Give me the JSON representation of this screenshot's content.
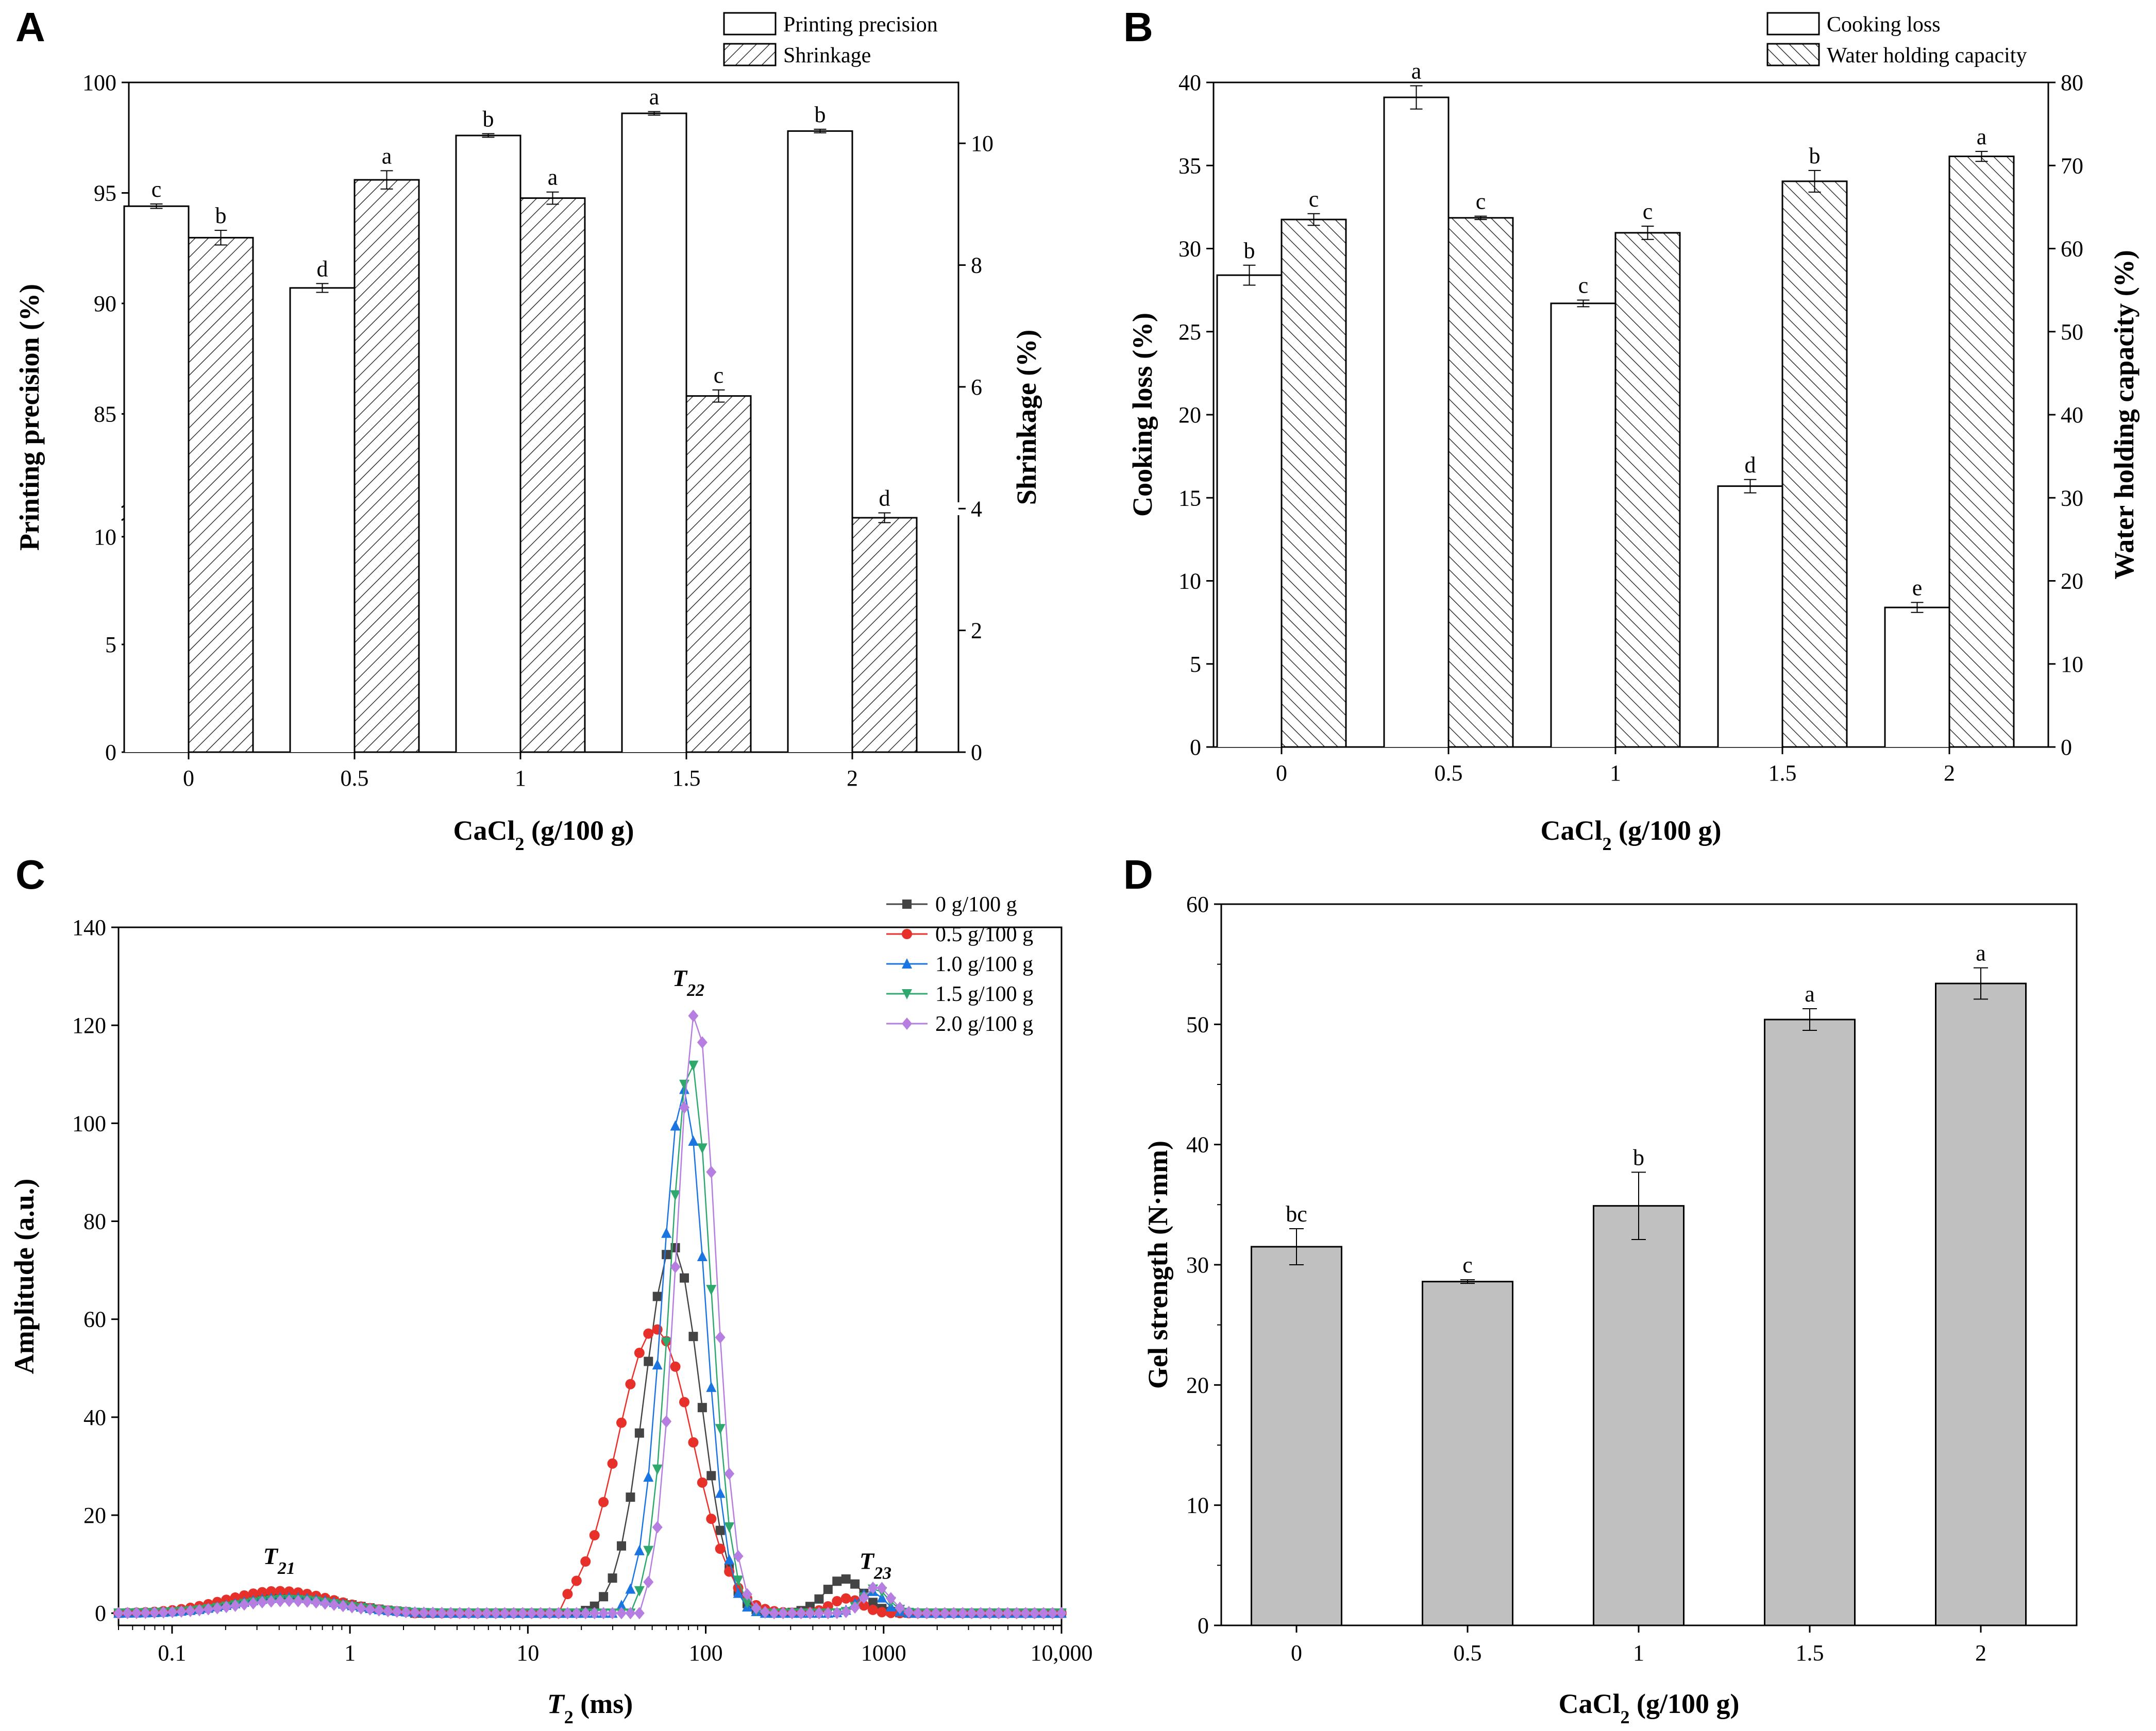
{
  "colors": {
    "bar_fill": "#ffffff",
    "hatch": "#333333",
    "gel_bar": "#c0c0c0",
    "series": [
      "#444444",
      "#e8302a",
      "#1a75e0",
      "#2fa86e",
      "#b57ee0"
    ]
  },
  "chart_data": [
    {
      "panel": "A",
      "type": "bar",
      "categories": [
        "0",
        "0.5",
        "1",
        "1.5",
        "2"
      ],
      "xlabel_main": "CaCl",
      "xlabel_sub": "2",
      "xlabel_rest": " (g/100 g)",
      "ylabel": "Printing precision (%)",
      "ylabel_right": "Shrinkage (%)",
      "left_axis_ticks": [
        "0",
        "5",
        "10",
        "85",
        "90",
        "95",
        "100"
      ],
      "left_axis_break": {
        "lower": [
          0,
          11
        ],
        "upper": [
          81,
          100
        ]
      },
      "right_ylim": [
        0,
        11
      ],
      "right_ticks": [
        "0",
        "2",
        "4",
        "6",
        "8",
        "10"
      ],
      "series": [
        {
          "name": "Printing precision",
          "axis": "left",
          "pattern": "open",
          "values": [
            94.4,
            90.7,
            97.6,
            98.6,
            97.8
          ],
          "errors": [
            0.1,
            0.2,
            0.08,
            0.08,
            0.08
          ],
          "letters": [
            "c",
            "d",
            "b",
            "a",
            "b"
          ]
        },
        {
          "name": "Shrinkage",
          "axis": "right",
          "pattern": "hatched",
          "values": [
            8.45,
            9.4,
            9.1,
            5.85,
            3.85
          ],
          "errors": [
            0.12,
            0.15,
            0.1,
            0.1,
            0.08
          ],
          "letters": [
            "b",
            "a",
            "a",
            "c",
            "d"
          ]
        }
      ]
    },
    {
      "panel": "B",
      "type": "bar",
      "categories": [
        "0",
        "0.5",
        "1",
        "1.5",
        "2"
      ],
      "xlabel_main": "CaCl",
      "xlabel_sub": "2",
      "xlabel_rest": " (g/100 g)",
      "ylabel": "Cooking loss (%)",
      "ylabel_right": "Water holding capacity (%)",
      "ylim": [
        0,
        40
      ],
      "left_ticks": [
        "0",
        "5",
        "10",
        "15",
        "20",
        "25",
        "30",
        "35",
        "40"
      ],
      "right_ylim": [
        0,
        80
      ],
      "right_ticks": [
        "0",
        "10",
        "20",
        "30",
        "40",
        "50",
        "60",
        "70",
        "80"
      ],
      "series": [
        {
          "name": "Cooking loss",
          "axis": "left",
          "pattern": "open",
          "values": [
            28.4,
            39.1,
            26.7,
            15.7,
            8.4
          ],
          "errors": [
            0.6,
            0.7,
            0.2,
            0.4,
            0.3
          ],
          "letters": [
            "b",
            "a",
            "c",
            "d",
            "e"
          ]
        },
        {
          "name": "Water holding capacity",
          "axis": "right",
          "pattern": "hatched",
          "values": [
            63.5,
            63.7,
            61.9,
            68.1,
            71.1
          ],
          "errors": [
            0.7,
            0.2,
            0.8,
            1.3,
            0.6
          ],
          "letters": [
            "c",
            "c",
            "c",
            "b",
            "a"
          ]
        }
      ]
    },
    {
      "panel": "C",
      "type": "line",
      "xscale": "log",
      "xlim": [
        0.05,
        10000
      ],
      "ylim": [
        0,
        140
      ],
      "x_ticks": [
        "0.1",
        "1",
        "10",
        "100",
        "1000",
        "10,000"
      ],
      "y_ticks": [
        "0",
        "20",
        "40",
        "60",
        "80",
        "100",
        "120",
        "140"
      ],
      "xlabel_main": "T",
      "xlabel_sub": "2",
      "xlabel_rest": " (ms)",
      "ylabel": "Amplitude (a.u.)",
      "peak_labels": [
        {
          "main": "T",
          "sub": "21",
          "x": 0.4,
          "y": 10
        },
        {
          "main": "T",
          "sub": "22",
          "x": 80,
          "y": 128
        },
        {
          "main": "T",
          "sub": "23",
          "x": 900,
          "y": 9
        }
      ],
      "series": [
        {
          "name": "0 g/100 g",
          "marker": "square",
          "peaks": [
            {
              "amp": 3.5,
              "center": 0.45,
              "width": 0.42,
              "from": 0.05,
              "to": 2.2
            },
            {
              "amp": 75,
              "center": 65,
              "width": 0.22,
              "from": 20,
              "to": 220
            },
            {
              "amp": 7,
              "center": 600,
              "width": 0.15,
              "from": 230,
              "to": 1300
            }
          ]
        },
        {
          "name": "0.5 g/100 g",
          "marker": "circle",
          "peaks": [
            {
              "amp": 4.5,
              "center": 0.4,
              "width": 0.42,
              "from": 0.05,
              "to": 2.2
            },
            {
              "amp": 58,
              "center": 52,
              "width": 0.3,
              "from": 15,
              "to": 350
            },
            {
              "amp": 3,
              "center": 620,
              "width": 0.12,
              "from": 350,
              "to": 1200
            }
          ]
        },
        {
          "name": "1.0 g/100 g",
          "marker": "triangle-up",
          "peaks": [
            {
              "amp": 3.2,
              "center": 0.45,
              "width": 0.42,
              "from": 0.05,
              "to": 5
            },
            {
              "amp": 107,
              "center": 75,
              "width": 0.17,
              "from": 33,
              "to": 200
            },
            {
              "amp": 4.5,
              "center": 850,
              "width": 0.1,
              "from": 230,
              "to": 1400
            }
          ]
        },
        {
          "name": "1.5 g/100 g",
          "marker": "triangle-down",
          "peaks": [
            {
              "amp": 2.8,
              "center": 0.45,
              "width": 0.42,
              "from": 0.05,
              "to": 5
            },
            {
              "amp": 113,
              "center": 82,
              "width": 0.16,
              "from": 40,
              "to": 210
            },
            {
              "amp": 5,
              "center": 900,
              "width": 0.1,
              "from": 230,
              "to": 1400
            }
          ]
        },
        {
          "name": "2.0 g/100 g",
          "marker": "diamond",
          "peaks": [
            {
              "amp": 2.5,
              "center": 0.45,
              "width": 0.42,
              "from": 0.05,
              "to": 5
            },
            {
              "amp": 123,
              "center": 88,
              "width": 0.155,
              "from": 45,
              "to": 220
            },
            {
              "amp": 5.5,
              "center": 920,
              "width": 0.1,
              "from": 230,
              "to": 1400
            }
          ]
        }
      ]
    },
    {
      "panel": "D",
      "type": "bar",
      "categories": [
        "0",
        "0.5",
        "1",
        "1.5",
        "2"
      ],
      "xlabel_main": "CaCl",
      "xlabel_sub": "2",
      "xlabel_rest": " (g/100 g)",
      "ylabel": "Gel strength (N·mm)",
      "ylim": [
        0,
        60
      ],
      "y_ticks": [
        "0",
        "10",
        "20",
        "30",
        "40",
        "50",
        "60"
      ],
      "values": [
        31.5,
        28.6,
        34.9,
        50.4,
        53.4
      ],
      "errors": [
        1.5,
        0.15,
        2.8,
        0.9,
        1.3
      ],
      "letters": [
        "bc",
        "c",
        "b",
        "a",
        "a"
      ]
    }
  ]
}
